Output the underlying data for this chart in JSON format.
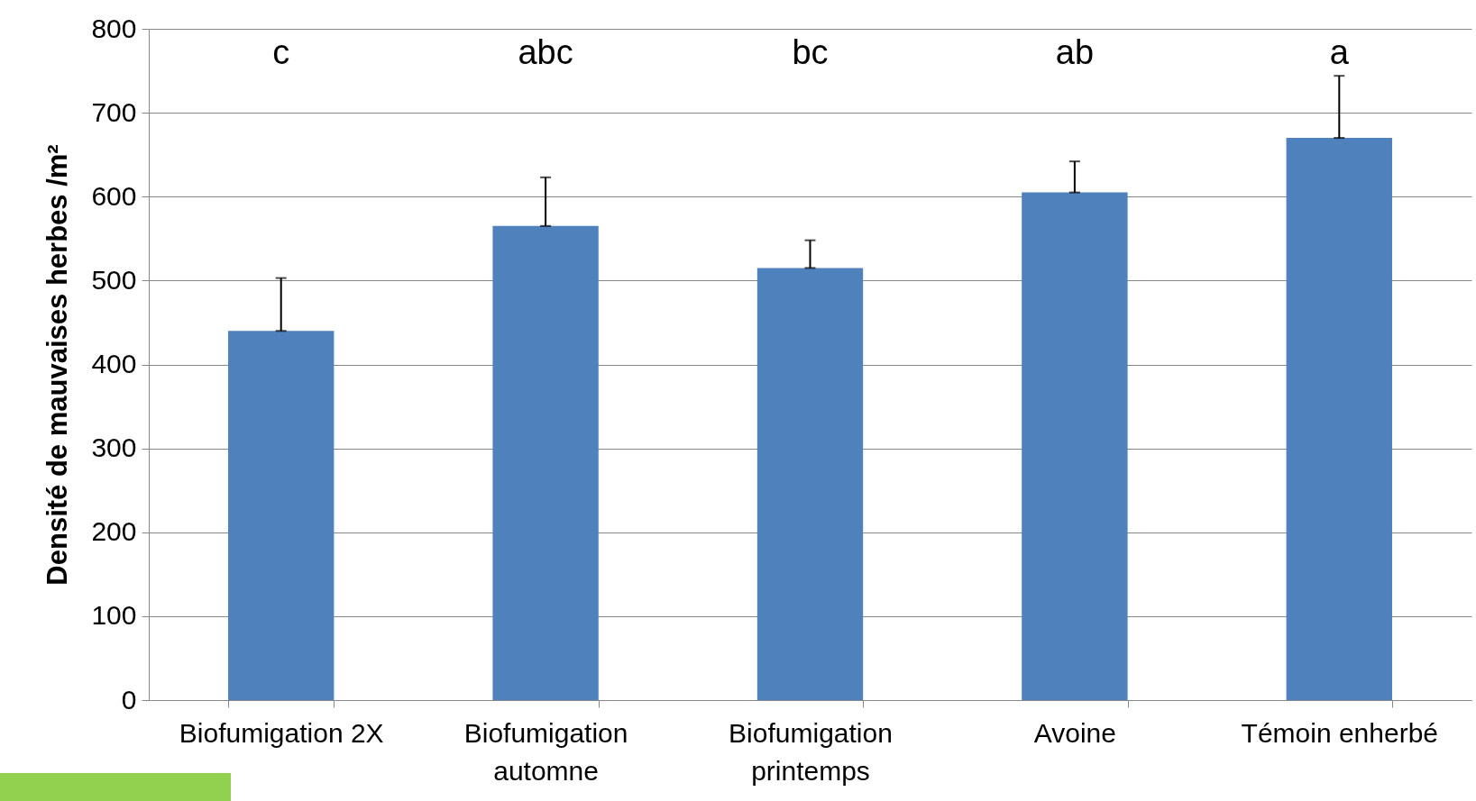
{
  "chart_data": {
    "type": "bar",
    "ylabel": "Densité de mauvaises herbes /m²",
    "categories": [
      "Biofumigation 2X",
      "Biofumigation automne",
      "Biofumigation printemps",
      "Avoine",
      "Témoin enherbé"
    ],
    "values": [
      440,
      565,
      515,
      605,
      670
    ],
    "errors": [
      [
        440,
        503
      ],
      [
        565,
        623
      ],
      [
        515,
        548
      ],
      [
        605,
        642
      ],
      [
        670,
        744
      ]
    ],
    "color": "#4f81bd",
    "ylim": [
      0,
      800
    ],
    "yticks": [
      0,
      100,
      200,
      300,
      400,
      500,
      600,
      700,
      800
    ],
    "grid": "y",
    "annotations": [
      "c",
      "abc",
      "bc",
      "ab",
      "a"
    ]
  }
}
